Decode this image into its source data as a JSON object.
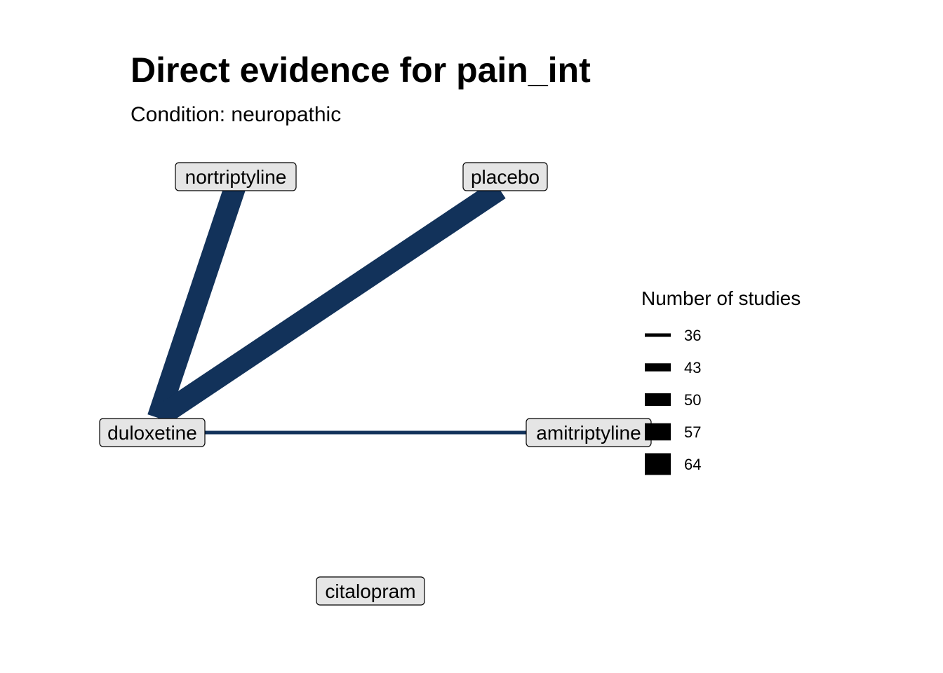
{
  "title": "Direct evidence for pain_int",
  "subtitle": "Condition: neuropathic",
  "edge_color": "#12325a",
  "node_fill": "#e5e5e5",
  "nodes": [
    {
      "id": "nortriptyline",
      "label": "nortriptyline"
    },
    {
      "id": "placebo",
      "label": "placebo"
    },
    {
      "id": "duloxetine",
      "label": "duloxetine"
    },
    {
      "id": "amitriptyline",
      "label": "amitriptyline"
    },
    {
      "id": "citalopram",
      "label": "citalopram"
    }
  ],
  "edges": [
    {
      "from": "duloxetine",
      "to": "nortriptyline",
      "studies": 64
    },
    {
      "from": "duloxetine",
      "to": "placebo",
      "studies": 64
    },
    {
      "from": "duloxetine",
      "to": "amitriptyline",
      "studies": 36
    }
  ],
  "legend": {
    "title": "Number of studies",
    "entries": [
      "36",
      "43",
      "50",
      "57",
      "64"
    ]
  }
}
